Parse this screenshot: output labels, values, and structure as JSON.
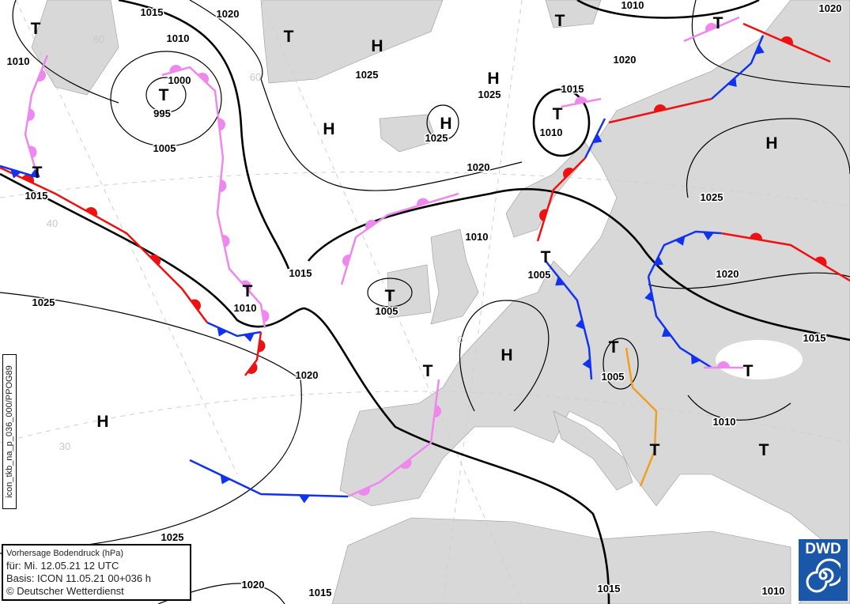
{
  "legend": {
    "title": "Vorhersage Bodendruck (hPa)",
    "valid": "für:  Mi. 12.05.21  12 UTC",
    "basis": "Basis: ICON  11.05.21 00+036 h",
    "copyright": "© Deutscher Wetterdienst"
  },
  "product_code": "icon_tkb_na_p_036_000/PPOG89",
  "logo": "DWD",
  "isobar_labels": [
    "1015",
    "1020",
    "1010",
    "1010",
    "1000",
    "995",
    "1005",
    "1015",
    "1025",
    "1010",
    "1015",
    "1020",
    "1025",
    "1020",
    "1015",
    "1015",
    "1010",
    "1025",
    "1025",
    "1025",
    "1020",
    "1015",
    "1010",
    "1010",
    "1005",
    "1005",
    "1005",
    "1010",
    "1015",
    "1020",
    "1025",
    "1020",
    "1010",
    "1020"
  ],
  "pressure_centers": [
    "T",
    "T",
    "H",
    "H",
    "H",
    "H",
    "T",
    "T",
    "T",
    "T",
    "T",
    "H",
    "T",
    "T",
    "T",
    "T",
    "H",
    "T",
    "T",
    "T",
    "T",
    "H"
  ],
  "grid_labels": [
    "60",
    "60",
    "40",
    "0",
    "30"
  ],
  "front_colors": {
    "warm": "#ee1111",
    "cold": "#1133ee",
    "occluded": "#ee88ee",
    "trough": "#f0a020"
  },
  "colors": {
    "land": "#d8d8d8",
    "sea": "#ffffff"
  }
}
